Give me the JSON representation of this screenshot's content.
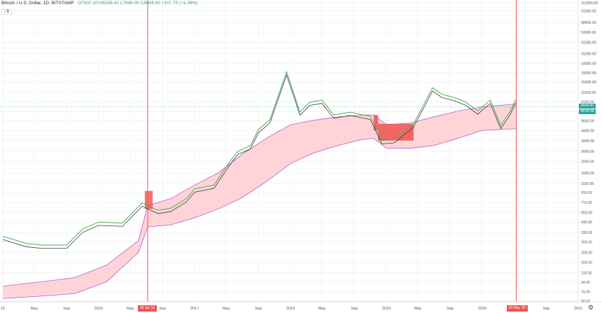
{
  "header": {
    "symbol": "Bitcoin / U.S. Dollar",
    "interval": "1D",
    "exchange": "BITSTAMP",
    "ohlc": "O7937.20 H8158.42 L7840.00 C8044.00 +107.75 (+1.36%)",
    "collapse_label": "6"
  },
  "price_tags": {
    "price": "8044.00",
    "countdown": "08:40:35"
  },
  "date_tags": [
    "06 Jul '16",
    "10 May '20"
  ],
  "colors": {
    "line_green": "#4caf50",
    "line_dark": "#3a3a3a",
    "band_fill": "#ffcdd2",
    "band_border": "#b95bd6",
    "inverted_fill": "#ef5350",
    "vline": "#ef5350",
    "price_line": "#26a69a"
  },
  "chart_data": {
    "type": "line",
    "y_scale": "log",
    "y_ticks": [
      "112000.00",
      "91000.00",
      "68000.00",
      "53000.00",
      "41000.00",
      "31000.00",
      "24000.00",
      "19000.00",
      "15000.00",
      "11500.00",
      "9100.00",
      "7100.00",
      "5600.00",
      "4400.00",
      "3400.00",
      "2600.00",
      "2000.00",
      "1500.00",
      "1150.00",
      "910.00",
      "710.00",
      "550.00",
      "430.00",
      "330.00",
      "260.00",
      "200.00",
      "155.00",
      "119.00",
      "94.00",
      "74.00",
      "58.00"
    ],
    "x_ticks": [
      "15",
      "May",
      "Sep",
      "2016",
      "May",
      "Sep",
      "2017",
      "May",
      "Sep",
      "2018",
      "May",
      "Sep",
      "2019",
      "May",
      "Sep",
      "2020",
      "May",
      "Sep",
      "2021"
    ],
    "price": {
      "name": "BTCUSD",
      "x": [
        "2015-01-01",
        "2015-04-01",
        "2015-06-01",
        "2015-09-01",
        "2015-11-01",
        "2016-01-01",
        "2016-04-01",
        "2016-06-15",
        "2016-07-06",
        "2016-08-15",
        "2016-10-01",
        "2016-12-01",
        "2017-01-01",
        "2017-03-15",
        "2017-05-15",
        "2017-06-15",
        "2017-08-01",
        "2017-09-01",
        "2017-10-15",
        "2017-12-17",
        "2018-01-15",
        "2018-02-06",
        "2018-03-15",
        "2018-05-01",
        "2018-06-15",
        "2018-08-15",
        "2018-11-01",
        "2018-12-15",
        "2019-02-01",
        "2019-04-15",
        "2019-06-26",
        "2019-08-01",
        "2019-09-15",
        "2019-11-01",
        "2019-12-15",
        "2020-02-01",
        "2020-03-12",
        "2020-04-15",
        "2020-05-08"
      ],
      "y": [
        300,
        250,
        240,
        240,
        360,
        430,
        420,
        700,
        650,
        580,
        610,
        780,
        1000,
        1100,
        2000,
        2600,
        3000,
        4500,
        5800,
        19500,
        11000,
        7000,
        9000,
        9500,
        6500,
        7000,
        6300,
        3400,
        3500,
        5200,
        13000,
        11000,
        10200,
        9000,
        7200,
        9500,
        5000,
        7000,
        9600
      ]
    },
    "band": {
      "name": "band",
      "x": [
        "2015-01-01",
        "2015-06-01",
        "2015-10-01",
        "2016-02-01",
        "2016-06-01",
        "2016-07-06",
        "2016-10-01",
        "2017-01-01",
        "2017-04-01",
        "2017-07-01",
        "2017-10-01",
        "2018-01-01",
        "2018-04-01",
        "2018-07-01",
        "2018-10-01",
        "2018-11-14",
        "2019-01-01",
        "2019-04-01",
        "2019-07-01",
        "2019-10-01",
        "2020-01-01",
        "2020-05-08"
      ],
      "upper": [
        85,
        95,
        105,
        145,
        270,
        650,
        780,
        1100,
        1500,
        2400,
        3600,
        5100,
        5700,
        6200,
        6500,
        6500,
        5100,
        5300,
        6200,
        7200,
        8000,
        8600
      ],
      "lower": [
        62,
        66,
        70,
        95,
        200,
        380,
        400,
        480,
        600,
        800,
        1200,
        1900,
        2500,
        3000,
        3500,
        3600,
        2800,
        2800,
        3000,
        3600,
        4400,
        4600
      ]
    },
    "markers": [
      "2016-07-06",
      "2020-05-10"
    ],
    "last_price": 8044
  }
}
